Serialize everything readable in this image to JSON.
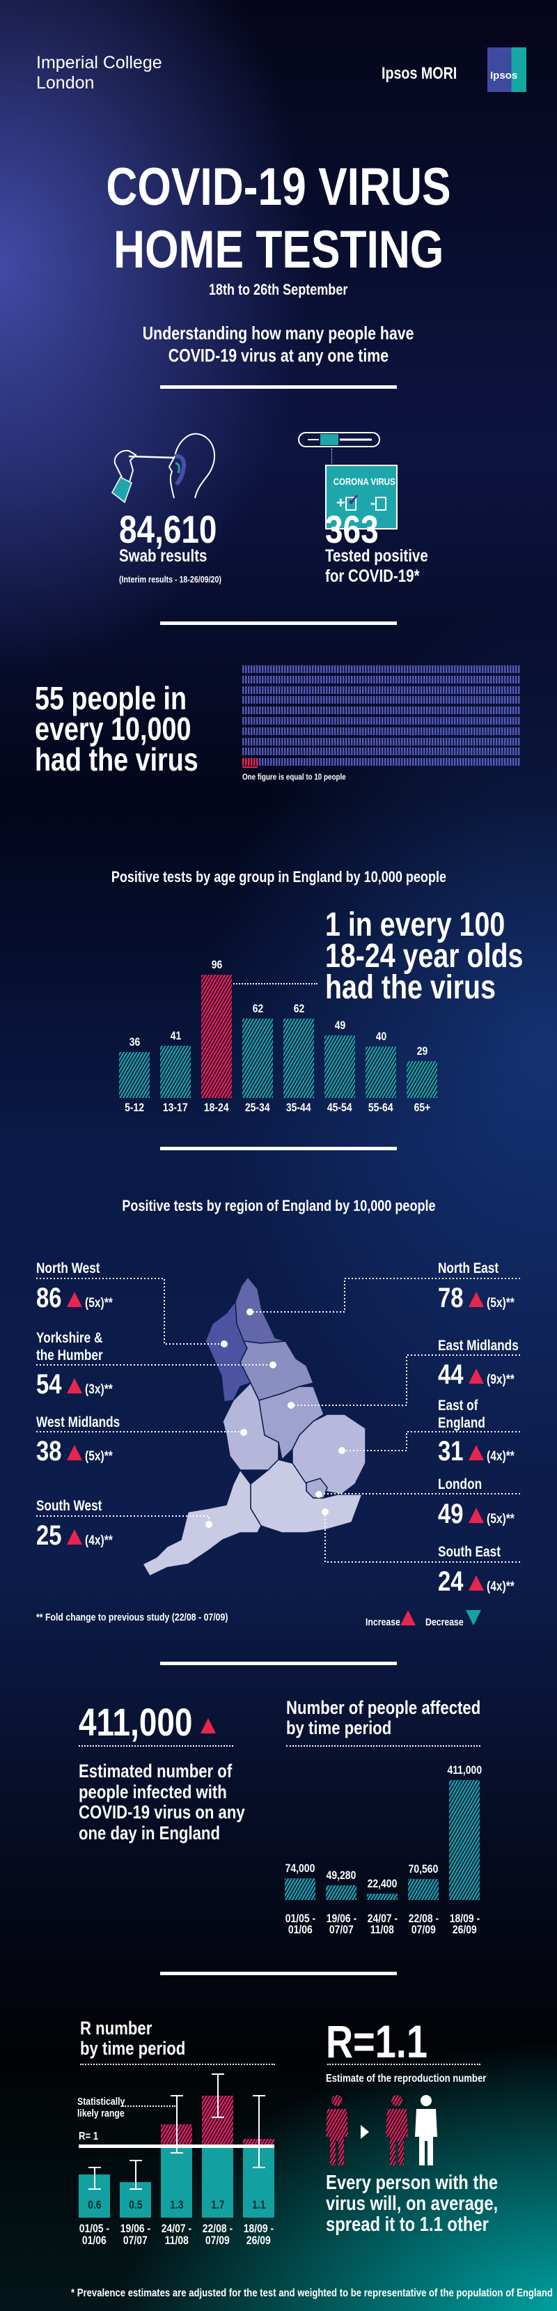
{
  "header": {
    "imperial_line1": "Imperial College",
    "imperial_line2": "London",
    "ipsos_mori": "Ipsos MORI",
    "ipsos_badge": "Ipsos"
  },
  "title": {
    "line1": "COVID-19 VIRUS",
    "line2": "HOME TESTING",
    "dates": "18th to 26th September",
    "subtitle_line1": "Understanding how many people have",
    "subtitle_line2": "COVID-19 virus at any one time"
  },
  "stats": {
    "swab_count": "84,610",
    "swab_label": "Swab results",
    "swab_note": "(Interim results - 18-26/09/20)",
    "kit_label": "CORONA VIRUS",
    "kit_plus": "+",
    "kit_minus": "-",
    "positive_count": "363",
    "positive_line1": "Tested positive",
    "positive_line2": "for COVID-19*"
  },
  "prevalence": {
    "line1": "55 people in",
    "line2": "every 10,000",
    "line3": "had the virus",
    "note": "One figure is equal to 10 people",
    "total_figures": 1000,
    "highlighted_figures": 5.5,
    "people_per_figure": 10
  },
  "age_callout": {
    "line1": "1 in every 100",
    "line2": "18-24 year olds",
    "line3": "had the virus"
  },
  "regions": {
    "title": "Positive tests by region of England by 10,000 people",
    "items": [
      {
        "name": "North West",
        "value": "86",
        "fold": "(5x)**",
        "trend": "increase"
      },
      {
        "name_line1": "Yorkshire &",
        "name_line2": "the Humber",
        "value": "54",
        "fold": "(3x)**",
        "trend": "increase"
      },
      {
        "name": "West Midlands",
        "value": "38",
        "fold": "(5x)**",
        "trend": "increase"
      },
      {
        "name": "South West",
        "value": "25",
        "fold": "(4x)**",
        "trend": "increase"
      },
      {
        "name": "North East",
        "value": "78",
        "fold": "(5x)**",
        "trend": "increase"
      },
      {
        "name": "East Midlands",
        "value": "44",
        "fold": "(9x)**",
        "trend": "increase"
      },
      {
        "name_line1": "East of",
        "name_line2": "England",
        "value": "31",
        "fold": "(4x)**",
        "trend": "increase"
      },
      {
        "name": "London",
        "value": "49",
        "fold": "(5x)**",
        "trend": "increase"
      },
      {
        "name": "South East",
        "value": "24",
        "fold": "(4x)**",
        "trend": "increase"
      }
    ],
    "footnote": "** Fold change to previous study (22/08 - 07/09)",
    "legend_increase": "Increase",
    "legend_decrease": "Decrease"
  },
  "estimate": {
    "value": "411,000",
    "desc_line1": "Estimated number of",
    "desc_line2": "people infected with",
    "desc_line3": "COVID-19 virus on any",
    "desc_line4": "one day in England"
  },
  "r_summary": {
    "value": "R=1.1",
    "caption": "Estimate of the reproduction number",
    "text_line1": "Every person with the",
    "text_line2": "virus will, on average,",
    "text_line3": "spread it to 1.1 other"
  },
  "footnote": "* Prevalence estimates are adjusted for the test and weighted to be representative of the population of England",
  "colors": {
    "teal": "#1ea6ab",
    "red": "#e8254f",
    "navy": "#0c1d4c"
  },
  "chart_data": [
    {
      "type": "bar",
      "title": "Positive tests by age group in England by 10,000 people",
      "categories": [
        "5-12",
        "13-17",
        "18-24",
        "25-34",
        "35-44",
        "45-54",
        "55-64",
        "65+"
      ],
      "values": [
        36,
        41,
        96,
        62,
        62,
        49,
        40,
        29
      ],
      "highlight": "18-24",
      "ylim": [
        0,
        100
      ]
    },
    {
      "type": "bar",
      "title_line1": "Number of people affected",
      "title_line2": "by time period",
      "categories": [
        [
          "01/05 -",
          "01/06"
        ],
        [
          "19/06 -",
          "07/07"
        ],
        [
          "24/07 -",
          "11/08"
        ],
        [
          "22/08 -",
          "07/09"
        ],
        [
          "18/09 -",
          "26/09"
        ]
      ],
      "values": [
        74000,
        49280,
        22400,
        70560,
        411000
      ],
      "labels": [
        "74,000",
        "49,280",
        "22,400",
        "70,560",
        "411,000"
      ],
      "ylim": [
        0,
        411000
      ]
    },
    {
      "type": "bar",
      "title_line1": "R number",
      "title_line2": "by time period",
      "categories": [
        [
          "01/05 -",
          "01/06"
        ],
        [
          "19/06 -",
          "07/07"
        ],
        [
          "24/07 -",
          "11/08"
        ],
        [
          "22/08 -",
          "07/09"
        ],
        [
          "18/09 -",
          "26/09"
        ]
      ],
      "values": [
        0.6,
        0.5,
        1.3,
        1.7,
        1.1
      ],
      "labels": [
        "0.6",
        "0.5",
        "1.3",
        "1.7",
        "1.1"
      ],
      "ranges": [
        [
          0.4,
          0.7
        ],
        [
          0.4,
          0.8
        ],
        [
          0.9,
          1.7
        ],
        [
          1.4,
          2.0
        ],
        [
          0.7,
          1.7
        ]
      ],
      "reference_line": 1,
      "reference_label": "R= 1",
      "range_label_line1": "Statistically",
      "range_label_line2": "likely range"
    }
  ]
}
